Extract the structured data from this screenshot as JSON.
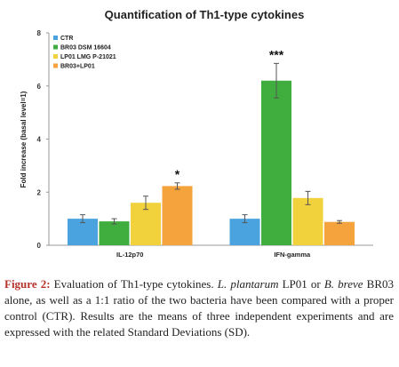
{
  "chart_data": {
    "type": "bar",
    "title": "Quantification of Th1-type cytokines",
    "ylabel": "Fold increase (basal level=1)",
    "xlabel": "",
    "ylim": [
      0,
      8
    ],
    "yticks": [
      0,
      2,
      4,
      6,
      8
    ],
    "categories": [
      "IL-12p70",
      "IFN-gamma"
    ],
    "legend_position": "top-left",
    "grid": false,
    "series": [
      {
        "name": "CTR",
        "color": "#4aa3df",
        "values": [
          1.0,
          1.0
        ],
        "errors": [
          0.15,
          0.15
        ]
      },
      {
        "name": "BR03 DSM 16604",
        "color": "#3fae3f",
        "values": [
          0.9,
          6.2
        ],
        "errors": [
          0.1,
          0.65
        ]
      },
      {
        "name": "LP01 LMG P-21021",
        "color": "#f2d23c",
        "values": [
          1.6,
          1.78
        ],
        "errors": [
          0.25,
          0.25
        ]
      },
      {
        "name": "BR03+LP01",
        "color": "#f5a33c",
        "values": [
          2.23,
          0.88
        ],
        "errors": [
          0.12,
          0.05
        ]
      }
    ],
    "annotations": [
      {
        "category": "IL-12p70",
        "series": "BR03+LP01",
        "text": "*"
      },
      {
        "category": "IFN-gamma",
        "series": "BR03 DSM 16604",
        "text": "***"
      }
    ]
  },
  "caption": {
    "label": "Figure 2:",
    "t1": " Evaluation of Th1-type cytokines. ",
    "i1": "L. plantarum",
    "t2": " LP01 or ",
    "i2": "B. breve",
    "t3": " BR03 alone, as well as a 1:1 ratio of the two bacteria have been compared with a proper control (CTR). Results are the means of three independent experiments and are expressed with the related Standard Deviations (SD)."
  }
}
